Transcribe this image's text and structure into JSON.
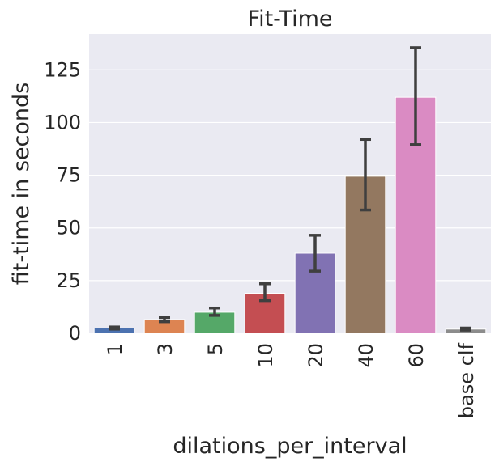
{
  "chart_data": {
    "type": "bar",
    "title": "Fit-Time",
    "xlabel": "dilations_per_interval",
    "ylabel": "fit-time in seconds",
    "categories": [
      "1",
      "3",
      "5",
      "10",
      "20",
      "40",
      "60",
      "base clf"
    ],
    "values": [
      2.5,
      6.5,
      10,
      19,
      38,
      74.5,
      112,
      2
    ],
    "error_low": [
      2,
      5.5,
      8.5,
      15.5,
      29.5,
      58.5,
      89.5,
      1.5
    ],
    "error_high": [
      3,
      7.5,
      12,
      23.5,
      46.5,
      92,
      135.5,
      2.5
    ],
    "yticks": [
      0,
      25,
      50,
      75,
      100,
      125
    ],
    "ylim": [
      0,
      142
    ],
    "grid": true,
    "colors": [
      "#4c72b0",
      "#dd8452",
      "#55a868",
      "#c44e52",
      "#8172b3",
      "#937860",
      "#da8bc3",
      "#8c8c8c"
    ],
    "background": "#eaeaf2",
    "error_color": "#3f3f3f"
  }
}
